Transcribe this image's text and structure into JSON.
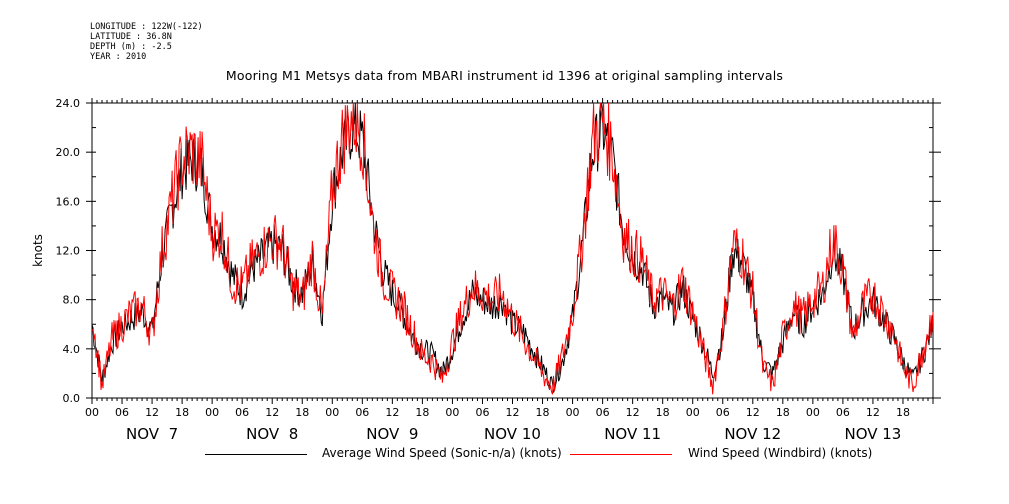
{
  "header": {
    "meta": [
      "LONGITUDE : 122W(-122)",
      "LATITUDE : 36.8N",
      "DEPTH (m) : -2.5",
      "YEAR : 2010"
    ],
    "title": "Mooring M1 Metsys data from MBARI instrument id 1396 at original sampling intervals"
  },
  "chart_data": {
    "type": "line",
    "title": "Mooring M1 Metsys data from MBARI instrument id 1396 at original sampling intervals",
    "ylabel": "knots",
    "xlabel": "",
    "ylim": [
      0,
      24
    ],
    "y_ticks": [
      "0.0",
      "4.0",
      "8.0",
      "12.0",
      "16.0",
      "20.0",
      "24.0"
    ],
    "x_hour_ticks": [
      "00",
      "06",
      "12",
      "18",
      "00",
      "06",
      "12",
      "18",
      "00",
      "06",
      "12",
      "18",
      "00",
      "06",
      "12",
      "18",
      "00",
      "06",
      "12",
      "18",
      "00",
      "06",
      "12",
      "18",
      "00",
      "06",
      "12",
      "18"
    ],
    "x_day_labels": [
      "NOV  7",
      "NOV  8",
      "NOV  9",
      "NOV 10",
      "NOV 11",
      "NOV 12",
      "NOV 13"
    ],
    "x_units": "hours since NOV 7 00:00",
    "x_range": [
      0,
      168
    ],
    "x": [
      0,
      2,
      4,
      6,
      8,
      10,
      12,
      14,
      16,
      18,
      20,
      22,
      24,
      26,
      28,
      30,
      32,
      34,
      36,
      38,
      40,
      42,
      44,
      46,
      48,
      50,
      52,
      54,
      56,
      58,
      60,
      62,
      64,
      66,
      68,
      70,
      72,
      74,
      76,
      78,
      80,
      82,
      84,
      86,
      88,
      90,
      92,
      94,
      96,
      98,
      100,
      102,
      104,
      106,
      108,
      110,
      112,
      114,
      116,
      118,
      120,
      122,
      124,
      126,
      128,
      130,
      132,
      134,
      136,
      138,
      140,
      142,
      144,
      146,
      148,
      150,
      152,
      154,
      156,
      158,
      160,
      162,
      164,
      166,
      168
    ],
    "series": [
      {
        "name": "Average Wind Speed (Sonic-n/a) (knots)",
        "color": "#000000",
        "values": [
          6.0,
          1.5,
          4.5,
          5.8,
          6.5,
          7.0,
          5.5,
          11.5,
          15.5,
          18.5,
          19.5,
          18.5,
          14.0,
          13.0,
          10.0,
          8.5,
          10.5,
          11.5,
          12.5,
          12.0,
          9.5,
          8.5,
          11.0,
          7.0,
          16.5,
          20.0,
          22.0,
          21.0,
          15.0,
          10.5,
          8.5,
          7.0,
          5.0,
          4.0,
          3.5,
          2.0,
          4.0,
          6.5,
          8.5,
          8.0,
          7.5,
          8.0,
          6.0,
          5.5,
          4.0,
          2.5,
          1.0,
          3.0,
          6.5,
          12.5,
          20.0,
          22.0,
          19.5,
          14.0,
          11.5,
          10.5,
          7.5,
          8.0,
          7.0,
          9.0,
          6.5,
          4.5,
          2.0,
          5.0,
          12.0,
          11.0,
          8.0,
          3.0,
          2.0,
          4.5,
          7.0,
          6.0,
          7.5,
          8.5,
          12.0,
          10.0,
          5.5,
          7.0,
          8.0,
          6.5,
          5.0,
          3.0,
          1.5,
          3.5,
          6.0
        ],
        "smooth_values": [
          6.0,
          1.5,
          4.5,
          5.8,
          6.5,
          7.0,
          5.5,
          11.5,
          15.5,
          18.5,
          19.5,
          18.5,
          14.0,
          13.0,
          10.0,
          8.5,
          10.5,
          11.5,
          12.5,
          12.0,
          9.5,
          8.5,
          11.0,
          7.0,
          16.5,
          20.0,
          22.0,
          21.0,
          15.0,
          10.5,
          8.5,
          7.0,
          5.0,
          4.0,
          3.5,
          2.0,
          4.0,
          6.5,
          8.5,
          8.0,
          7.5,
          8.0,
          6.0,
          5.5,
          4.0,
          2.5,
          1.0,
          3.0,
          6.5,
          12.5,
          20.0,
          22.0,
          19.5,
          14.0,
          11.5,
          10.5,
          7.5,
          8.0,
          7.0,
          9.0,
          6.5,
          4.5,
          2.0,
          5.0,
          12.0,
          11.0,
          8.0,
          3.0,
          2.0,
          4.5,
          7.0,
          6.0,
          7.5,
          8.5,
          12.0,
          10.0,
          5.5,
          7.0,
          8.0,
          6.5,
          5.0,
          3.0,
          1.5,
          3.5,
          6.0
        ]
      },
      {
        "name": "Wind Speed (Windbird) (knots)",
        "color": "#ff0000",
        "values": [
          7.0,
          1.0,
          4.8,
          6.0,
          7.0,
          7.5,
          5.0,
          12.0,
          16.0,
          19.5,
          20.0,
          19.0,
          13.5,
          13.5,
          9.5,
          9.0,
          11.0,
          12.0,
          13.0,
          12.5,
          9.0,
          8.0,
          11.5,
          6.5,
          17.0,
          21.0,
          23.0,
          21.5,
          14.5,
          10.0,
          8.5,
          7.5,
          5.5,
          3.5,
          3.0,
          1.5,
          4.5,
          7.0,
          9.0,
          8.5,
          8.0,
          8.5,
          6.5,
          5.0,
          3.5,
          2.0,
          0.8,
          3.5,
          7.0,
          13.0,
          21.0,
          22.5,
          20.0,
          13.5,
          12.0,
          11.0,
          8.0,
          8.5,
          7.5,
          9.5,
          7.0,
          4.0,
          1.0,
          5.5,
          12.5,
          11.5,
          8.5,
          2.5,
          1.0,
          5.0,
          7.5,
          6.5,
          8.0,
          9.0,
          13.0,
          10.5,
          5.0,
          7.5,
          8.5,
          7.0,
          5.5,
          2.5,
          1.0,
          4.0,
          7.0
        ]
      }
    ],
    "legend": [
      {
        "label": "Average Wind Speed (Sonic-n/a) (knots)",
        "color": "#000000"
      },
      {
        "label": "Wind Speed (Windbird) (knots)",
        "color": "#ff0000"
      }
    ],
    "legend_position": "bottom",
    "grid": false
  }
}
